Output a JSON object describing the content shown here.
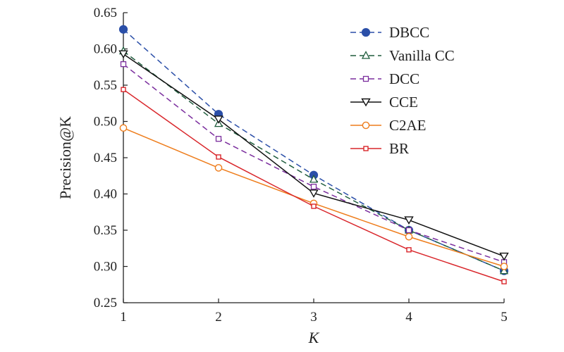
{
  "chart_data": {
    "type": "line",
    "x": [
      1,
      2,
      3,
      4,
      5
    ],
    "xlabel": "K",
    "ylabel": "Precision@K",
    "xlim": [
      1,
      5
    ],
    "ylim": [
      0.25,
      0.65
    ],
    "xticks": [
      "1",
      "2",
      "3",
      "4",
      "5"
    ],
    "yticks": [
      "0.25",
      "0.30",
      "0.35",
      "0.40",
      "0.45",
      "0.50",
      "0.55",
      "0.60",
      "0.65"
    ],
    "grid": false,
    "legend_position": "top-right",
    "series": [
      {
        "name": "DBCC",
        "values": [
          0.627,
          0.51,
          0.426,
          0.35,
          0.294
        ],
        "color": "#2b4fa8",
        "dash": "dashed",
        "marker": "circle-filled"
      },
      {
        "name": "Vanilla CC",
        "values": [
          0.597,
          0.497,
          0.42,
          0.35,
          0.294
        ],
        "color": "#1e5c3c",
        "dash": "dashed",
        "marker": "triangle-up-open"
      },
      {
        "name": "DCC",
        "values": [
          0.579,
          0.476,
          0.41,
          0.35,
          0.306
        ],
        "color": "#7b2e9e",
        "dash": "dashed",
        "marker": "square-open"
      },
      {
        "name": "CCE",
        "values": [
          0.593,
          0.503,
          0.401,
          0.364,
          0.314
        ],
        "color": "#111111",
        "dash": "solid",
        "marker": "triangle-down-open"
      },
      {
        "name": "C2AE",
        "values": [
          0.491,
          0.436,
          0.387,
          0.341,
          0.3
        ],
        "color": "#ee7d1c",
        "dash": "solid",
        "marker": "circle-open"
      },
      {
        "name": "BR",
        "values": [
          0.544,
          0.451,
          0.383,
          0.323,
          0.279
        ],
        "color": "#d9262b",
        "dash": "solid",
        "marker": "square-small-open"
      }
    ]
  }
}
